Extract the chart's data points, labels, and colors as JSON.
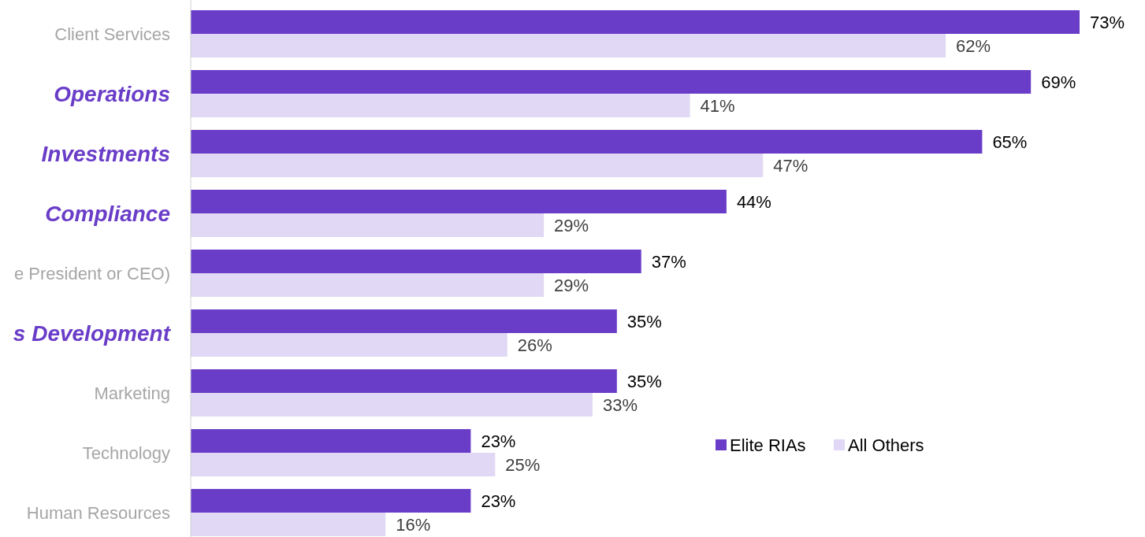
{
  "chart_data": {
    "type": "bar",
    "orientation": "horizontal",
    "categories": [
      "Client Services",
      "Operations",
      "Investments",
      "Compliance",
      "e President or CEO)",
      "s Development",
      "Marketing",
      "Technology",
      "Human Resources"
    ],
    "series": [
      {
        "name": "Elite RIAs",
        "color": "#6a3dc8",
        "values": [
          73,
          69,
          65,
          44,
          37,
          35,
          35,
          23,
          23
        ],
        "value_labels": [
          "73%",
          "69%",
          "65%",
          "44%",
          "37%",
          "35%",
          "35%",
          "23%",
          "23%"
        ]
      },
      {
        "name": "All Others",
        "color": "#e0d8f4",
        "values": [
          62,
          41,
          47,
          29,
          29,
          26,
          33,
          25,
          16
        ],
        "value_labels": [
          "62%",
          "41%",
          "47%",
          "29%",
          "29%",
          "26%",
          "33%",
          "25%",
          "16%"
        ]
      }
    ],
    "legend": "bottom right"
  }
}
